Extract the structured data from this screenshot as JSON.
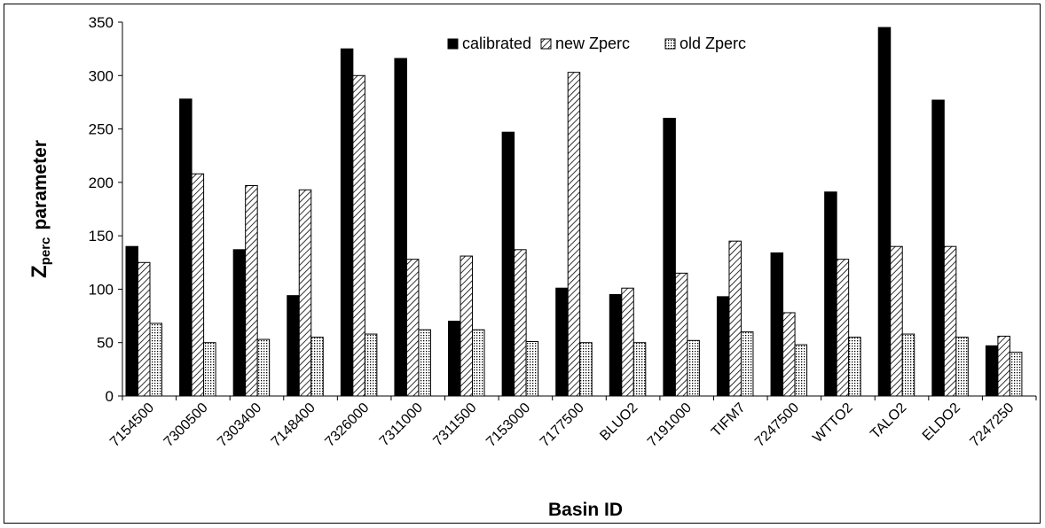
{
  "chart_data": {
    "type": "bar",
    "x_label": "Basin ID",
    "y_label": [
      "Z",
      "perc",
      "parameter"
    ],
    "categories": [
      "7154500",
      "7300500",
      "7303400",
      "7148400",
      "7326000",
      "7311000",
      "7311500",
      "7153000",
      "7177500",
      "BLUO2",
      "7191000",
      "TIFM7",
      "7247500",
      "WTTO2",
      "TALO2",
      "ELDO2",
      "7247250"
    ],
    "series": [
      {
        "name": "calibrated",
        "color": "#000000",
        "pattern": "solid",
        "values": [
          140,
          278,
          137,
          94,
          325,
          316,
          70,
          247,
          101,
          95,
          260,
          93,
          134,
          191,
          345,
          277,
          47
        ]
      },
      {
        "name": "new Zperc",
        "color": "#000000",
        "pattern": "diagonal",
        "values": [
          125,
          208,
          197,
          193,
          300,
          128,
          131,
          137,
          303,
          101,
          115,
          145,
          78,
          128,
          140,
          140,
          56
        ]
      },
      {
        "name": "old Zperc",
        "color": "#000000",
        "pattern": "dots",
        "values": [
          68,
          50,
          53,
          55,
          58,
          62,
          62,
          51,
          50,
          50,
          52,
          60,
          48,
          55,
          58,
          55,
          41
        ]
      }
    ],
    "ylim": [
      0,
      350
    ],
    "yticks": [
      0,
      50,
      100,
      150,
      200,
      250,
      300,
      350
    ],
    "legend": "top",
    "grid": false
  }
}
